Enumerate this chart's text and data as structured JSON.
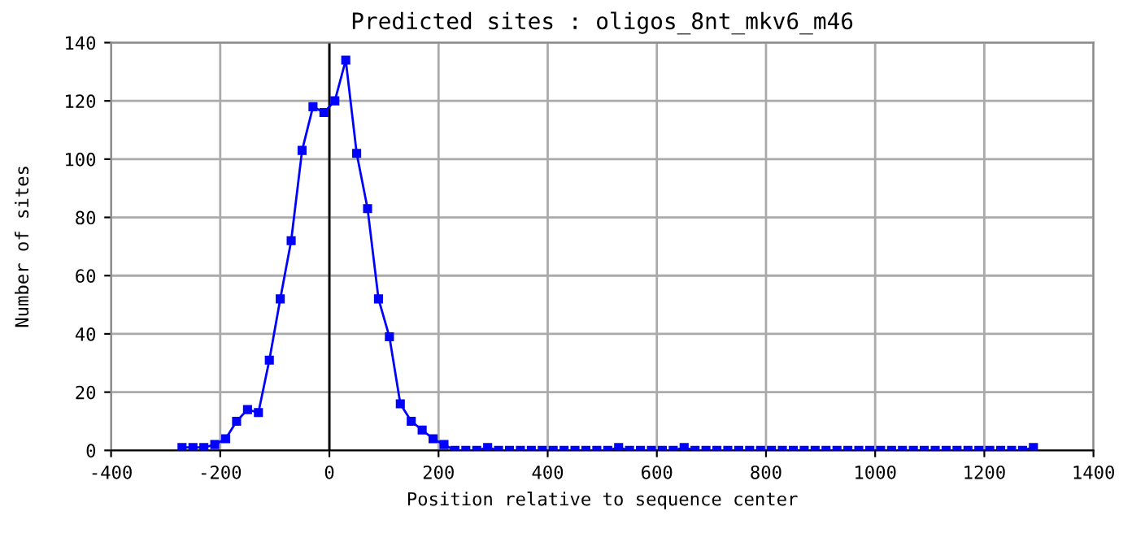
{
  "chart_data": {
    "type": "line",
    "title": "Predicted sites : oligos_8nt_mkv6_m46",
    "xlabel": "Position relative to sequence center",
    "ylabel": "Number of sites",
    "x": [
      -270,
      -250,
      -230,
      -210,
      -190,
      -170,
      -150,
      -130,
      -110,
      -90,
      -70,
      -50,
      -30,
      -10,
      10,
      30,
      50,
      70,
      90,
      110,
      130,
      150,
      170,
      190,
      210,
      230,
      250,
      270,
      290,
      310,
      330,
      350,
      370,
      390,
      410,
      430,
      450,
      470,
      490,
      510,
      530,
      550,
      570,
      590,
      610,
      630,
      650,
      670,
      690,
      710,
      730,
      750,
      770,
      790,
      810,
      830,
      850,
      870,
      890,
      910,
      930,
      950,
      970,
      990,
      1010,
      1030,
      1050,
      1070,
      1090,
      1110,
      1130,
      1150,
      1170,
      1190,
      1210,
      1230,
      1250,
      1270,
      1290
    ],
    "series": [
      {
        "color": "#0000ff",
        "values": [
          1,
          1,
          1,
          2,
          4,
          10,
          14,
          13,
          31,
          52,
          72,
          103,
          118,
          116,
          120,
          134,
          102,
          83,
          52,
          39,
          16,
          10,
          7,
          4,
          2,
          0,
          0,
          0,
          1,
          0,
          0,
          0,
          0,
          0,
          0,
          0,
          0,
          0,
          0,
          0,
          1,
          0,
          0,
          0,
          0,
          0,
          1,
          0,
          0,
          0,
          0,
          0,
          0,
          0,
          0,
          0,
          0,
          0,
          0,
          0,
          0,
          0,
          0,
          0,
          0,
          0,
          0,
          0,
          0,
          0,
          0,
          0,
          0,
          0,
          0,
          0,
          0,
          0,
          1
        ]
      }
    ],
    "xlim": [
      -400,
      1400
    ],
    "xticks": [
      -400,
      -200,
      0,
      200,
      400,
      600,
      800,
      1000,
      1200,
      1400
    ],
    "ylim": [
      0,
      140
    ],
    "yticks": [
      0,
      20,
      40,
      60,
      80,
      100,
      120,
      140
    ],
    "ref_lines": [
      {
        "axis": "x",
        "value": 0,
        "color": "#000000"
      }
    ],
    "grid": true,
    "marker": "square",
    "line_style": "solid"
  }
}
